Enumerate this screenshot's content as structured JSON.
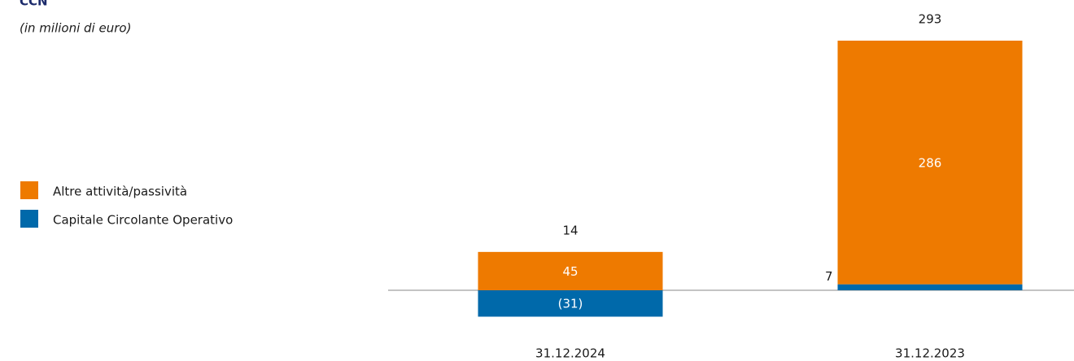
{
  "chart_data": {
    "type": "stacked_bar",
    "title": "CCN",
    "subtitle": "(in milioni di euro)",
    "categories": [
      "31.12.2024",
      "31.12.2023"
    ],
    "series": [
      {
        "name": "Capitale Circolante Operativo",
        "color": "#0069aa",
        "values": [
          -31,
          7
        ],
        "value_labels": [
          "(31)",
          "7"
        ]
      },
      {
        "name": "Altre attività/passività",
        "color": "#ee7a00",
        "values": [
          45,
          286
        ]
      }
    ],
    "totals": [
      14,
      293
    ],
    "legend": "left"
  }
}
